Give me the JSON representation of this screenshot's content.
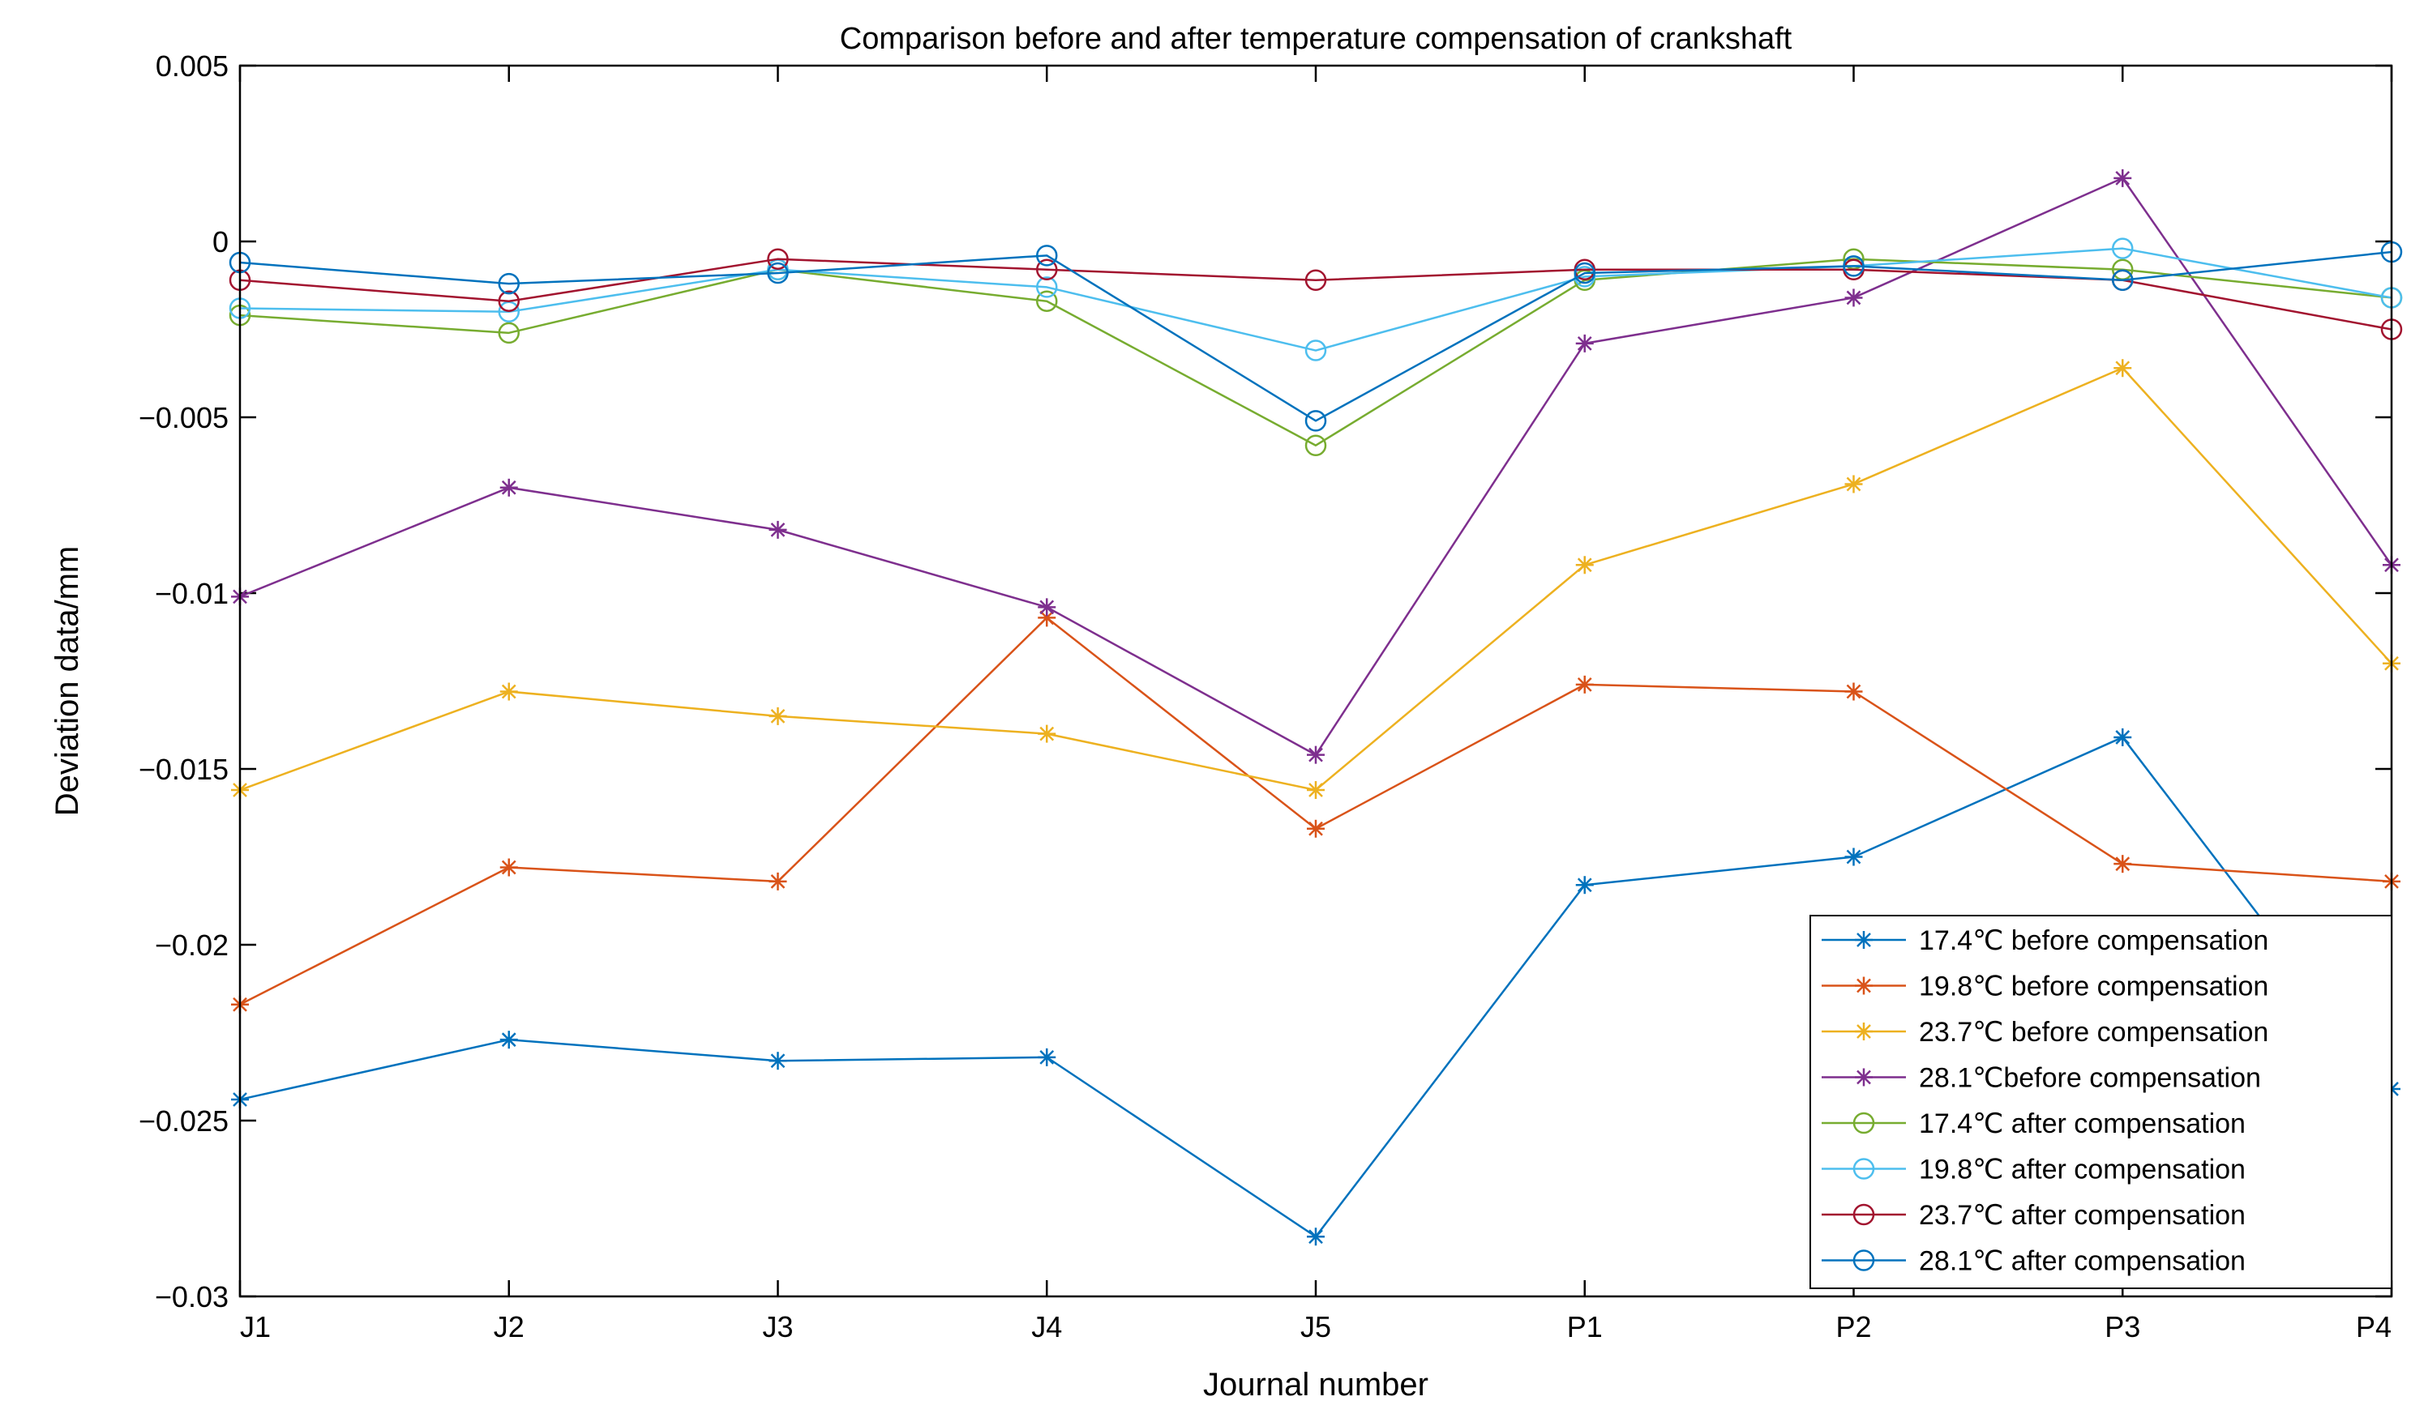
{
  "chart_data": {
    "type": "line",
    "title": "Comparison before and after temperature compensation of crankshaft",
    "xlabel": "Journal number",
    "ylabel": "Deviation data/mm",
    "categories": [
      "J1",
      "J2",
      "J3",
      "J4",
      "J5",
      "P1",
      "P2",
      "P3",
      "P4"
    ],
    "ylim": [
      -0.03,
      0.005
    ],
    "yticks": [
      0.005,
      0,
      -0.005,
      -0.01,
      -0.015,
      -0.02,
      -0.025,
      -0.03
    ],
    "ytick_labels": [
      "0.005",
      "0",
      "−0.005",
      "−0.01",
      "−0.015",
      "−0.02",
      "−0.025",
      "−0.03"
    ],
    "grid": false,
    "legend_position": "bottom-right",
    "series": [
      {
        "name": "17.4℃ before compensation",
        "color": "#0072BD",
        "marker": "asterisk",
        "values": [
          -0.0244,
          -0.0227,
          -0.0233,
          -0.0232,
          -0.0283,
          -0.0183,
          -0.0175,
          -0.0141,
          -0.0241
        ]
      },
      {
        "name": "19.8℃ before compensation",
        "color": "#D95319",
        "marker": "asterisk",
        "values": [
          -0.0217,
          -0.0178,
          -0.0182,
          -0.0107,
          -0.0167,
          -0.0126,
          -0.0128,
          -0.0177,
          -0.0182
        ]
      },
      {
        "name": "23.7℃ before compensation",
        "color": "#EDB120",
        "marker": "asterisk",
        "values": [
          -0.0156,
          -0.0128,
          -0.0135,
          -0.014,
          -0.0156,
          -0.0092,
          -0.0069,
          -0.0036,
          -0.012
        ]
      },
      {
        "name": "28.1℃before compensation",
        "color": "#7E2F8E",
        "marker": "asterisk",
        "values": [
          -0.0101,
          -0.007,
          -0.0082,
          -0.0104,
          -0.0146,
          -0.0029,
          -0.0016,
          0.0018,
          -0.0092
        ]
      },
      {
        "name": "17.4℃ after compensation",
        "color": "#77AC30",
        "marker": "circle",
        "values": [
          -0.0021,
          -0.0026,
          -0.0008,
          -0.0017,
          -0.0058,
          -0.0011,
          -0.0005,
          -0.0008,
          -0.0016
        ]
      },
      {
        "name": "19.8℃ after compensation",
        "color": "#4DBEEE",
        "marker": "circle",
        "values": [
          -0.0019,
          -0.002,
          -0.0008,
          -0.0013,
          -0.0031,
          -0.001,
          -0.0007,
          -0.0002,
          -0.0016
        ]
      },
      {
        "name": "23.7℃ after compensation",
        "color": "#A2142F",
        "marker": "circle",
        "values": [
          -0.0011,
          -0.0017,
          -0.0005,
          -0.0008,
          -0.0011,
          -0.0008,
          -0.0008,
          -0.0011,
          -0.0025
        ]
      },
      {
        "name": "28.1℃ after compensation",
        "color": "#0072BD",
        "marker": "circle",
        "values": [
          -0.0006,
          -0.0012,
          -0.0009,
          -0.0004,
          -0.0051,
          -0.0009,
          -0.0007,
          -0.0011,
          -0.0003
        ]
      }
    ]
  }
}
